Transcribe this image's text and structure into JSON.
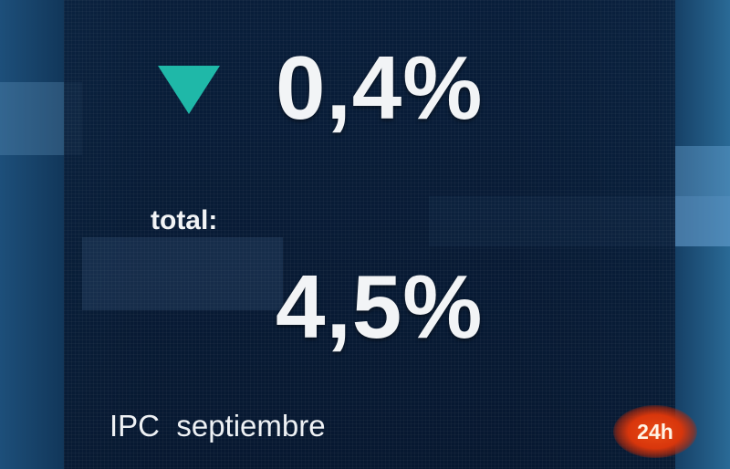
{
  "graphic": {
    "change_direction": "down",
    "change_icon": "triangle-down-icon",
    "change_value": "0,4%",
    "total_label": "total:",
    "total_value": "4,5%",
    "caption": "IPC  septiembre",
    "channel_logo": "24h",
    "colors": {
      "accent": "#1fb8a8",
      "logo": "#e84a14",
      "background": "#0a2242"
    }
  }
}
